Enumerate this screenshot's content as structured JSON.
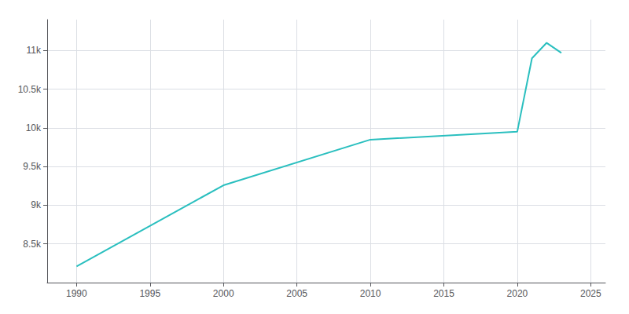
{
  "chart_data": {
    "type": "line",
    "x": [
      1990,
      2000,
      2010,
      2020,
      2021,
      2022,
      2023
    ],
    "values": [
      8209,
      9258,
      9848,
      9952,
      10900,
      11100,
      10970
    ],
    "color": "#2abfbf",
    "xlim": [
      1988,
      2026
    ],
    "ylim": [
      8000,
      11400
    ],
    "xticks": [
      1990,
      1995,
      2000,
      2005,
      2010,
      2015,
      2020,
      2025
    ],
    "yticks": [
      {
        "value": 8500,
        "label": "8.5k"
      },
      {
        "value": 9000,
        "label": "9k"
      },
      {
        "value": 9500,
        "label": "9.5k"
      },
      {
        "value": 10000,
        "label": "10k"
      },
      {
        "value": 10500,
        "label": "10.5k"
      },
      {
        "value": 11000,
        "label": "11k"
      }
    ],
    "grid": true
  }
}
